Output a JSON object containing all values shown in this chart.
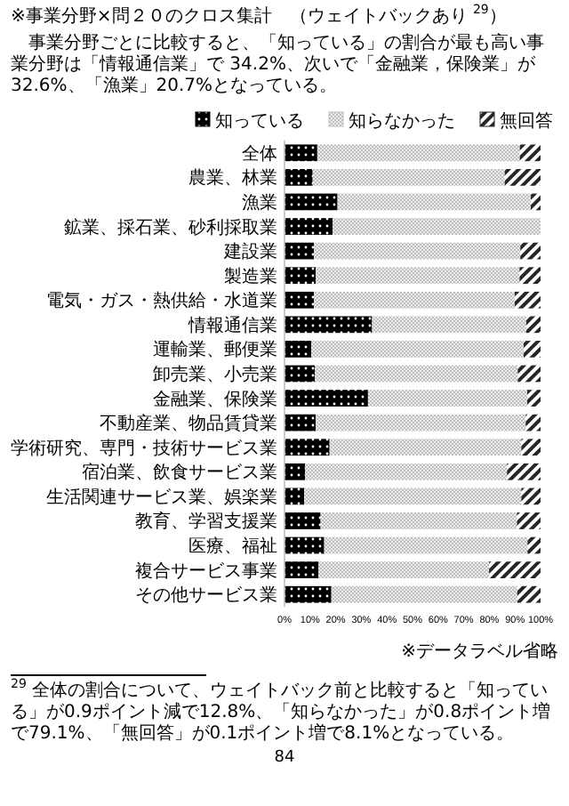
{
  "chart_data": {
    "type": "bar",
    "orientation": "horizontal",
    "stacked": true,
    "title": "※事業分野×問２０のクロス集計　（ウェイトバックあり $^{29}$）",
    "subtitle": "　事業分野ごとに比較すると、「知っている」の割合が最も高い事業分野は「情報通信業」で 34.2%、次いで「金融業，保険業」が 32.6%、「漁業」20.7%となっている。",
    "categories": [
      "全体",
      "農業、林業",
      "漁業",
      "鉱業、採石業、砂利採取業",
      "建設業",
      "製造業",
      "電気・ガス・熱供給・水道業",
      "情報通信業",
      "運輸業、郵便業",
      "卸売業、小売業",
      "金融業、保険業",
      "不動産業、物品賃貸業",
      "学術研究、専門・技術サービス業",
      "宿泊業、飲食サービス業",
      "生活関連サービス業、娯楽業",
      "教育、学習支援業",
      "医療、福祉",
      "複合サービス事業",
      "その他サービス業"
    ],
    "series": [
      {
        "name": "知っている",
        "color": "#000000",
        "values": [
          12.8,
          11.0,
          20.7,
          18.8,
          11.5,
          12.2,
          11.5,
          34.2,
          10.5,
          11.9,
          32.6,
          12.2,
          17.6,
          8.0,
          7.7,
          14.1,
          15.5,
          13.3,
          18.3
        ]
      },
      {
        "name": "知らなかった",
        "color": "#bfbfbf",
        "values": [
          79.1,
          75.0,
          75.5,
          81.2,
          80.6,
          79.6,
          78.4,
          60.2,
          82.9,
          79.2,
          62.2,
          82.0,
          74.9,
          78.9,
          84.8,
          76.7,
          79.4,
          66.6,
          72.6
        ]
      },
      {
        "name": "無回答",
        "color": "#262626",
        "values": [
          8.1,
          14.0,
          3.8,
          0,
          7.9,
          8.2,
          10.1,
          5.6,
          6.6,
          8.9,
          5.2,
          5.8,
          7.5,
          13.1,
          7.5,
          9.2,
          5.1,
          20.1,
          9.1
        ]
      }
    ],
    "xlim": [
      0,
      100
    ],
    "xticks": [
      {
        "value": 0,
        "label": "0%"
      },
      {
        "value": 10,
        "label": "10%"
      },
      {
        "value": 20,
        "label": "20%"
      },
      {
        "value": 30,
        "label": "30%"
      },
      {
        "value": 40,
        "label": "40%"
      },
      {
        "value": 50,
        "label": "50%"
      },
      {
        "value": 60,
        "label": "60%"
      },
      {
        "value": 70,
        "label": "70%"
      },
      {
        "value": 80,
        "label": "80%"
      },
      {
        "value": 90,
        "label": "90%"
      },
      {
        "value": 100,
        "label": "100%"
      }
    ],
    "legend": "top",
    "annotations": [
      "※データラベル省略",
      "$^{29}$ 全体の割合について、ウェイトバック前と比較すると「知っている」が0.9ポイント減で12.8%、「知らなかった」が0.8ポイント増で79.1%、「無回答」が0.1ポイント増で8.1%となっている。",
      "84"
    ]
  }
}
